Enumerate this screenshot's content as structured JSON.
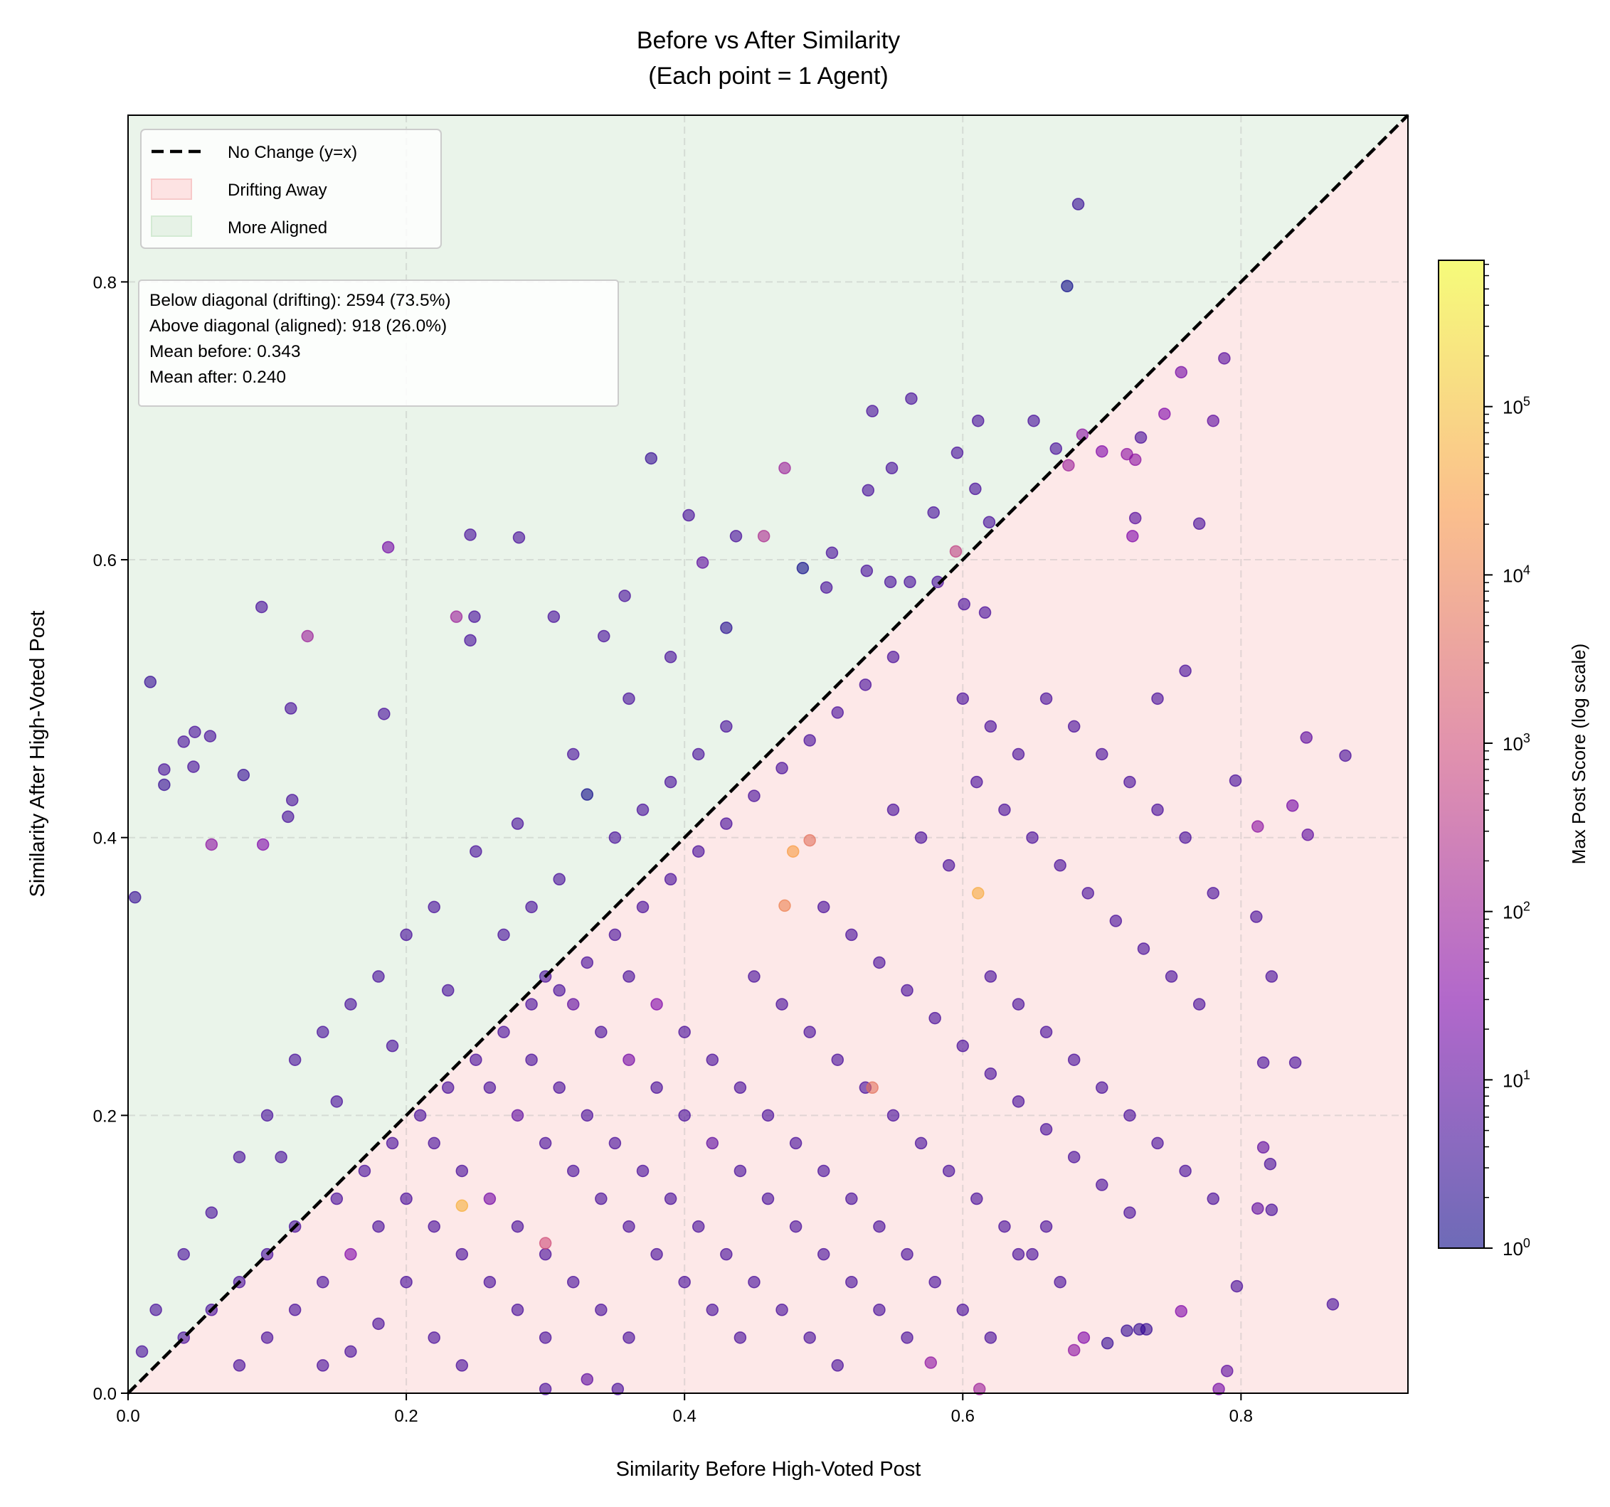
{
  "chart_data": {
    "type": "scatter",
    "title": [
      "Before vs After Similarity",
      "(Each point = 1 Agent)"
    ],
    "xlabel": "Similarity Before High-Voted Post",
    "ylabel": "Similarity After High-Voted Post",
    "xlim": [
      0,
      0.92
    ],
    "ylim": [
      0,
      0.92
    ],
    "xticks": [
      "0.0",
      "0.2",
      "0.4",
      "0.6",
      "0.8"
    ],
    "yticks": [
      "0.0",
      "0.2",
      "0.4",
      "0.6",
      "0.8"
    ],
    "grid": true,
    "legend": {
      "placement": "top-left",
      "entries": [
        "No Change (y=x)",
        "Drifting Away",
        "More Aligned"
      ]
    },
    "region_colors": {
      "drifting": "#fde8e8",
      "aligned": "#eaf4ea"
    },
    "stats_box": [
      "Below diagonal (drifting): 2594 (73.5%)",
      "Above diagonal (aligned): 918 (26.0%)",
      "Mean before: 0.343",
      "Mean after: 0.240"
    ],
    "colorbar": {
      "label": "Max Post Score (log scale)",
      "scale": "log",
      "colormap": "plasma",
      "range": [
        1,
        740000
      ],
      "ticks": [
        "10^0",
        "10^1",
        "10^2",
        "10^3",
        "10^4",
        "10^5"
      ]
    },
    "point_columns": [
      "before",
      "after",
      "max_post_score"
    ],
    "points": [
      [
        0.683,
        0.856,
        3
      ],
      [
        0.675,
        0.797,
        1
      ],
      [
        0.788,
        0.745,
        8
      ],
      [
        0.757,
        0.735,
        20
      ],
      [
        0.745,
        0.705,
        30
      ],
      [
        0.78,
        0.7,
        10
      ],
      [
        0.563,
        0.716,
        5
      ],
      [
        0.611,
        0.7,
        5
      ],
      [
        0.651,
        0.7,
        5
      ],
      [
        0.535,
        0.707,
        5
      ],
      [
        0.667,
        0.68,
        5
      ],
      [
        0.686,
        0.69,
        50
      ],
      [
        0.7,
        0.678,
        30
      ],
      [
        0.596,
        0.677,
        5
      ],
      [
        0.676,
        0.668,
        100
      ],
      [
        0.472,
        0.666,
        100
      ],
      [
        0.376,
        0.673,
        3
      ],
      [
        0.728,
        0.688,
        5
      ],
      [
        0.718,
        0.676,
        50
      ],
      [
        0.724,
        0.672,
        50
      ],
      [
        0.77,
        0.626,
        5
      ],
      [
        0.724,
        0.63,
        8
      ],
      [
        0.722,
        0.617,
        30
      ],
      [
        0.549,
        0.666,
        5
      ],
      [
        0.609,
        0.651,
        5
      ],
      [
        0.579,
        0.634,
        5
      ],
      [
        0.619,
        0.627,
        5
      ],
      [
        0.595,
        0.606,
        500
      ],
      [
        0.532,
        0.65,
        5
      ],
      [
        0.403,
        0.632,
        5
      ],
      [
        0.437,
        0.617,
        5
      ],
      [
        0.457,
        0.617,
        200
      ],
      [
        0.281,
        0.616,
        5
      ],
      [
        0.246,
        0.618,
        5
      ],
      [
        0.187,
        0.609,
        20
      ],
      [
        0.485,
        0.594,
        1
      ],
      [
        0.413,
        0.598,
        10
      ],
      [
        0.506,
        0.605,
        5
      ],
      [
        0.502,
        0.58,
        5
      ],
      [
        0.531,
        0.592,
        5
      ],
      [
        0.548,
        0.584,
        5
      ],
      [
        0.562,
        0.584,
        5
      ],
      [
        0.582,
        0.584,
        5
      ],
      [
        0.601,
        0.568,
        5
      ],
      [
        0.616,
        0.562,
        5
      ],
      [
        0.096,
        0.566,
        5
      ],
      [
        0.129,
        0.545,
        100
      ],
      [
        0.236,
        0.559,
        100
      ],
      [
        0.249,
        0.559,
        5
      ],
      [
        0.246,
        0.542,
        5
      ],
      [
        0.357,
        0.574,
        5
      ],
      [
        0.342,
        0.545,
        5
      ],
      [
        0.306,
        0.559,
        5
      ],
      [
        0.016,
        0.512,
        3
      ],
      [
        0.048,
        0.476,
        5
      ],
      [
        0.059,
        0.473,
        5
      ],
      [
        0.04,
        0.469,
        5
      ],
      [
        0.026,
        0.449,
        5
      ],
      [
        0.026,
        0.438,
        3
      ],
      [
        0.047,
        0.451,
        5
      ],
      [
        0.083,
        0.445,
        3
      ],
      [
        0.117,
        0.493,
        5
      ],
      [
        0.184,
        0.489,
        5
      ],
      [
        0.005,
        0.357,
        3
      ],
      [
        0.118,
        0.427,
        5
      ],
      [
        0.115,
        0.415,
        5
      ],
      [
        0.06,
        0.395,
        50
      ],
      [
        0.097,
        0.395,
        30
      ],
      [
        0.875,
        0.459,
        5
      ],
      [
        0.847,
        0.472,
        10
      ],
      [
        0.848,
        0.402,
        10
      ],
      [
        0.837,
        0.423,
        20
      ],
      [
        0.812,
        0.408,
        50
      ],
      [
        0.796,
        0.441,
        5
      ],
      [
        0.822,
        0.3,
        5
      ],
      [
        0.811,
        0.343,
        5
      ],
      [
        0.866,
        0.064,
        5
      ],
      [
        0.797,
        0.077,
        5
      ],
      [
        0.784,
        0.003,
        20
      ],
      [
        0.79,
        0.016,
        10
      ],
      [
        0.704,
        0.036,
        3
      ],
      [
        0.727,
        0.046,
        3
      ],
      [
        0.718,
        0.045,
        3
      ],
      [
        0.732,
        0.046,
        3
      ],
      [
        0.687,
        0.04,
        30
      ],
      [
        0.68,
        0.031,
        50
      ],
      [
        0.612,
        0.003,
        100
      ],
      [
        0.577,
        0.022,
        50
      ],
      [
        0.352,
        0.003,
        5
      ],
      [
        0.3,
        0.003,
        5
      ],
      [
        0.33,
        0.01,
        10
      ],
      [
        0.816,
        0.177,
        10
      ],
      [
        0.821,
        0.165,
        5
      ],
      [
        0.812,
        0.133,
        10
      ],
      [
        0.822,
        0.132,
        5
      ],
      [
        0.757,
        0.059,
        30
      ],
      [
        0.816,
        0.238,
        5
      ],
      [
        0.839,
        0.238,
        5
      ],
      [
        0.478,
        0.39,
        30000
      ],
      [
        0.611,
        0.36,
        50000
      ],
      [
        0.472,
        0.351,
        10000
      ],
      [
        0.49,
        0.398,
        5000
      ],
      [
        0.535,
        0.22,
        5000
      ],
      [
        0.3,
        0.108,
        1000
      ],
      [
        0.24,
        0.135,
        60000
      ],
      [
        0.33,
        0.431,
        1
      ],
      [
        0.43,
        0.551,
        2
      ],
      [
        0.39,
        0.53,
        5
      ],
      [
        0.36,
        0.5,
        5
      ],
      [
        0.32,
        0.46,
        5
      ],
      [
        0.28,
        0.41,
        5
      ],
      [
        0.25,
        0.39,
        5
      ],
      [
        0.22,
        0.35,
        5
      ],
      [
        0.2,
        0.33,
        5
      ],
      [
        0.18,
        0.3,
        5
      ],
      [
        0.16,
        0.28,
        5
      ],
      [
        0.14,
        0.26,
        5
      ],
      [
        0.12,
        0.24,
        5
      ],
      [
        0.1,
        0.2,
        5
      ],
      [
        0.08,
        0.17,
        5
      ],
      [
        0.06,
        0.13,
        5
      ],
      [
        0.04,
        0.1,
        5
      ],
      [
        0.02,
        0.06,
        5
      ],
      [
        0.01,
        0.03,
        5
      ],
      [
        0.3,
        0.3,
        5
      ],
      [
        0.32,
        0.28,
        10
      ],
      [
        0.34,
        0.26,
        5
      ],
      [
        0.36,
        0.24,
        20
      ],
      [
        0.38,
        0.22,
        5
      ],
      [
        0.4,
        0.2,
        5
      ],
      [
        0.42,
        0.18,
        10
      ],
      [
        0.44,
        0.16,
        5
      ],
      [
        0.46,
        0.14,
        5
      ],
      [
        0.48,
        0.12,
        5
      ],
      [
        0.5,
        0.1,
        5
      ],
      [
        0.52,
        0.08,
        5
      ],
      [
        0.54,
        0.06,
        5
      ],
      [
        0.56,
        0.04,
        5
      ],
      [
        0.26,
        0.22,
        5
      ],
      [
        0.28,
        0.2,
        10
      ],
      [
        0.3,
        0.18,
        5
      ],
      [
        0.32,
        0.16,
        5
      ],
      [
        0.34,
        0.14,
        5
      ],
      [
        0.36,
        0.12,
        5
      ],
      [
        0.38,
        0.1,
        5
      ],
      [
        0.4,
        0.08,
        5
      ],
      [
        0.42,
        0.06,
        5
      ],
      [
        0.44,
        0.04,
        5
      ],
      [
        0.22,
        0.18,
        5
      ],
      [
        0.24,
        0.16,
        5
      ],
      [
        0.26,
        0.14,
        20
      ],
      [
        0.28,
        0.12,
        5
      ],
      [
        0.3,
        0.1,
        5
      ],
      [
        0.32,
        0.08,
        5
      ],
      [
        0.34,
        0.06,
        5
      ],
      [
        0.36,
        0.04,
        5
      ],
      [
        0.2,
        0.14,
        5
      ],
      [
        0.22,
        0.12,
        5
      ],
      [
        0.24,
        0.1,
        5
      ],
      [
        0.26,
        0.08,
        5
      ],
      [
        0.28,
        0.06,
        5
      ],
      [
        0.3,
        0.04,
        5
      ],
      [
        0.18,
        0.12,
        5
      ],
      [
        0.16,
        0.1,
        30
      ],
      [
        0.14,
        0.08,
        5
      ],
      [
        0.12,
        0.06,
        5
      ],
      [
        0.1,
        0.04,
        5
      ],
      [
        0.08,
        0.02,
        5
      ],
      [
        0.15,
        0.14,
        5
      ],
      [
        0.17,
        0.16,
        5
      ],
      [
        0.19,
        0.18,
        5
      ],
      [
        0.21,
        0.2,
        5
      ],
      [
        0.23,
        0.22,
        5
      ],
      [
        0.25,
        0.24,
        5
      ],
      [
        0.27,
        0.26,
        5
      ],
      [
        0.29,
        0.28,
        5
      ],
      [
        0.31,
        0.29,
        5
      ],
      [
        0.33,
        0.31,
        5
      ],
      [
        0.35,
        0.33,
        5
      ],
      [
        0.37,
        0.35,
        5
      ],
      [
        0.39,
        0.37,
        5
      ],
      [
        0.41,
        0.39,
        5
      ],
      [
        0.43,
        0.41,
        5
      ],
      [
        0.45,
        0.43,
        5
      ],
      [
        0.47,
        0.45,
        5
      ],
      [
        0.49,
        0.47,
        5
      ],
      [
        0.51,
        0.49,
        5
      ],
      [
        0.53,
        0.51,
        5
      ],
      [
        0.55,
        0.53,
        5
      ],
      [
        0.45,
        0.3,
        5
      ],
      [
        0.47,
        0.28,
        5
      ],
      [
        0.49,
        0.26,
        5
      ],
      [
        0.51,
        0.24,
        5
      ],
      [
        0.53,
        0.22,
        5
      ],
      [
        0.55,
        0.2,
        5
      ],
      [
        0.57,
        0.18,
        5
      ],
      [
        0.59,
        0.16,
        5
      ],
      [
        0.61,
        0.14,
        5
      ],
      [
        0.63,
        0.12,
        5
      ],
      [
        0.65,
        0.1,
        5
      ],
      [
        0.67,
        0.08,
        5
      ],
      [
        0.5,
        0.35,
        5
      ],
      [
        0.52,
        0.33,
        5
      ],
      [
        0.54,
        0.31,
        5
      ],
      [
        0.56,
        0.29,
        5
      ],
      [
        0.58,
        0.27,
        5
      ],
      [
        0.6,
        0.25,
        5
      ],
      [
        0.62,
        0.23,
        5
      ],
      [
        0.64,
        0.21,
        5
      ],
      [
        0.66,
        0.19,
        5
      ],
      [
        0.68,
        0.17,
        5
      ],
      [
        0.7,
        0.15,
        5
      ],
      [
        0.72,
        0.13,
        5
      ],
      [
        0.55,
        0.42,
        5
      ],
      [
        0.57,
        0.4,
        5
      ],
      [
        0.59,
        0.38,
        5
      ],
      [
        0.61,
        0.44,
        5
      ],
      [
        0.63,
        0.42,
        5
      ],
      [
        0.65,
        0.4,
        5
      ],
      [
        0.67,
        0.38,
        5
      ],
      [
        0.69,
        0.36,
        5
      ],
      [
        0.71,
        0.34,
        5
      ],
      [
        0.73,
        0.32,
        5
      ],
      [
        0.75,
        0.3,
        5
      ],
      [
        0.77,
        0.28,
        5
      ],
      [
        0.6,
        0.5,
        5
      ],
      [
        0.62,
        0.48,
        5
      ],
      [
        0.64,
        0.46,
        5
      ],
      [
        0.66,
        0.5,
        5
      ],
      [
        0.68,
        0.48,
        5
      ],
      [
        0.7,
        0.46,
        5
      ],
      [
        0.72,
        0.44,
        5
      ],
      [
        0.74,
        0.42,
        5
      ],
      [
        0.76,
        0.4,
        5
      ],
      [
        0.78,
        0.36,
        5
      ],
      [
        0.76,
        0.52,
        5
      ],
      [
        0.74,
        0.5,
        5
      ],
      [
        0.35,
        0.4,
        5
      ],
      [
        0.37,
        0.42,
        5
      ],
      [
        0.39,
        0.44,
        5
      ],
      [
        0.41,
        0.46,
        5
      ],
      [
        0.43,
        0.48,
        5
      ],
      [
        0.27,
        0.33,
        5
      ],
      [
        0.29,
        0.35,
        5
      ],
      [
        0.31,
        0.37,
        5
      ],
      [
        0.23,
        0.29,
        5
      ],
      [
        0.19,
        0.25,
        5
      ],
      [
        0.15,
        0.21,
        5
      ],
      [
        0.11,
        0.17,
        5
      ],
      [
        0.36,
        0.3,
        5
      ],
      [
        0.38,
        0.28,
        30
      ],
      [
        0.4,
        0.26,
        5
      ],
      [
        0.42,
        0.24,
        5
      ],
      [
        0.44,
        0.22,
        5
      ],
      [
        0.46,
        0.2,
        5
      ],
      [
        0.48,
        0.18,
        5
      ],
      [
        0.5,
        0.16,
        5
      ],
      [
        0.52,
        0.14,
        5
      ],
      [
        0.54,
        0.12,
        5
      ],
      [
        0.56,
        0.1,
        5
      ],
      [
        0.58,
        0.08,
        5
      ],
      [
        0.33,
        0.2,
        5
      ],
      [
        0.35,
        0.18,
        5
      ],
      [
        0.37,
        0.16,
        5
      ],
      [
        0.39,
        0.14,
        5
      ],
      [
        0.41,
        0.12,
        5
      ],
      [
        0.43,
        0.1,
        5
      ],
      [
        0.45,
        0.08,
        5
      ],
      [
        0.47,
        0.06,
        5
      ],
      [
        0.49,
        0.04,
        5
      ],
      [
        0.51,
        0.02,
        5
      ],
      [
        0.29,
        0.24,
        5
      ],
      [
        0.31,
        0.22,
        5
      ],
      [
        0.2,
        0.08,
        5
      ],
      [
        0.18,
        0.05,
        5
      ],
      [
        0.16,
        0.03,
        5
      ],
      [
        0.14,
        0.02,
        5
      ],
      [
        0.22,
        0.04,
        5
      ],
      [
        0.24,
        0.02,
        5
      ],
      [
        0.12,
        0.12,
        5
      ],
      [
        0.1,
        0.1,
        5
      ],
      [
        0.08,
        0.08,
        5
      ],
      [
        0.06,
        0.06,
        5
      ],
      [
        0.04,
        0.04,
        5
      ],
      [
        0.62,
        0.3,
        5
      ],
      [
        0.64,
        0.28,
        5
      ],
      [
        0.66,
        0.26,
        5
      ],
      [
        0.68,
        0.24,
        5
      ],
      [
        0.7,
        0.22,
        5
      ],
      [
        0.72,
        0.2,
        5
      ],
      [
        0.74,
        0.18,
        5
      ],
      [
        0.76,
        0.16,
        5
      ],
      [
        0.78,
        0.14,
        5
      ],
      [
        0.6,
        0.06,
        5
      ],
      [
        0.62,
        0.04,
        5
      ],
      [
        0.64,
        0.1,
        5
      ],
      [
        0.66,
        0.12,
        5
      ]
    ]
  }
}
